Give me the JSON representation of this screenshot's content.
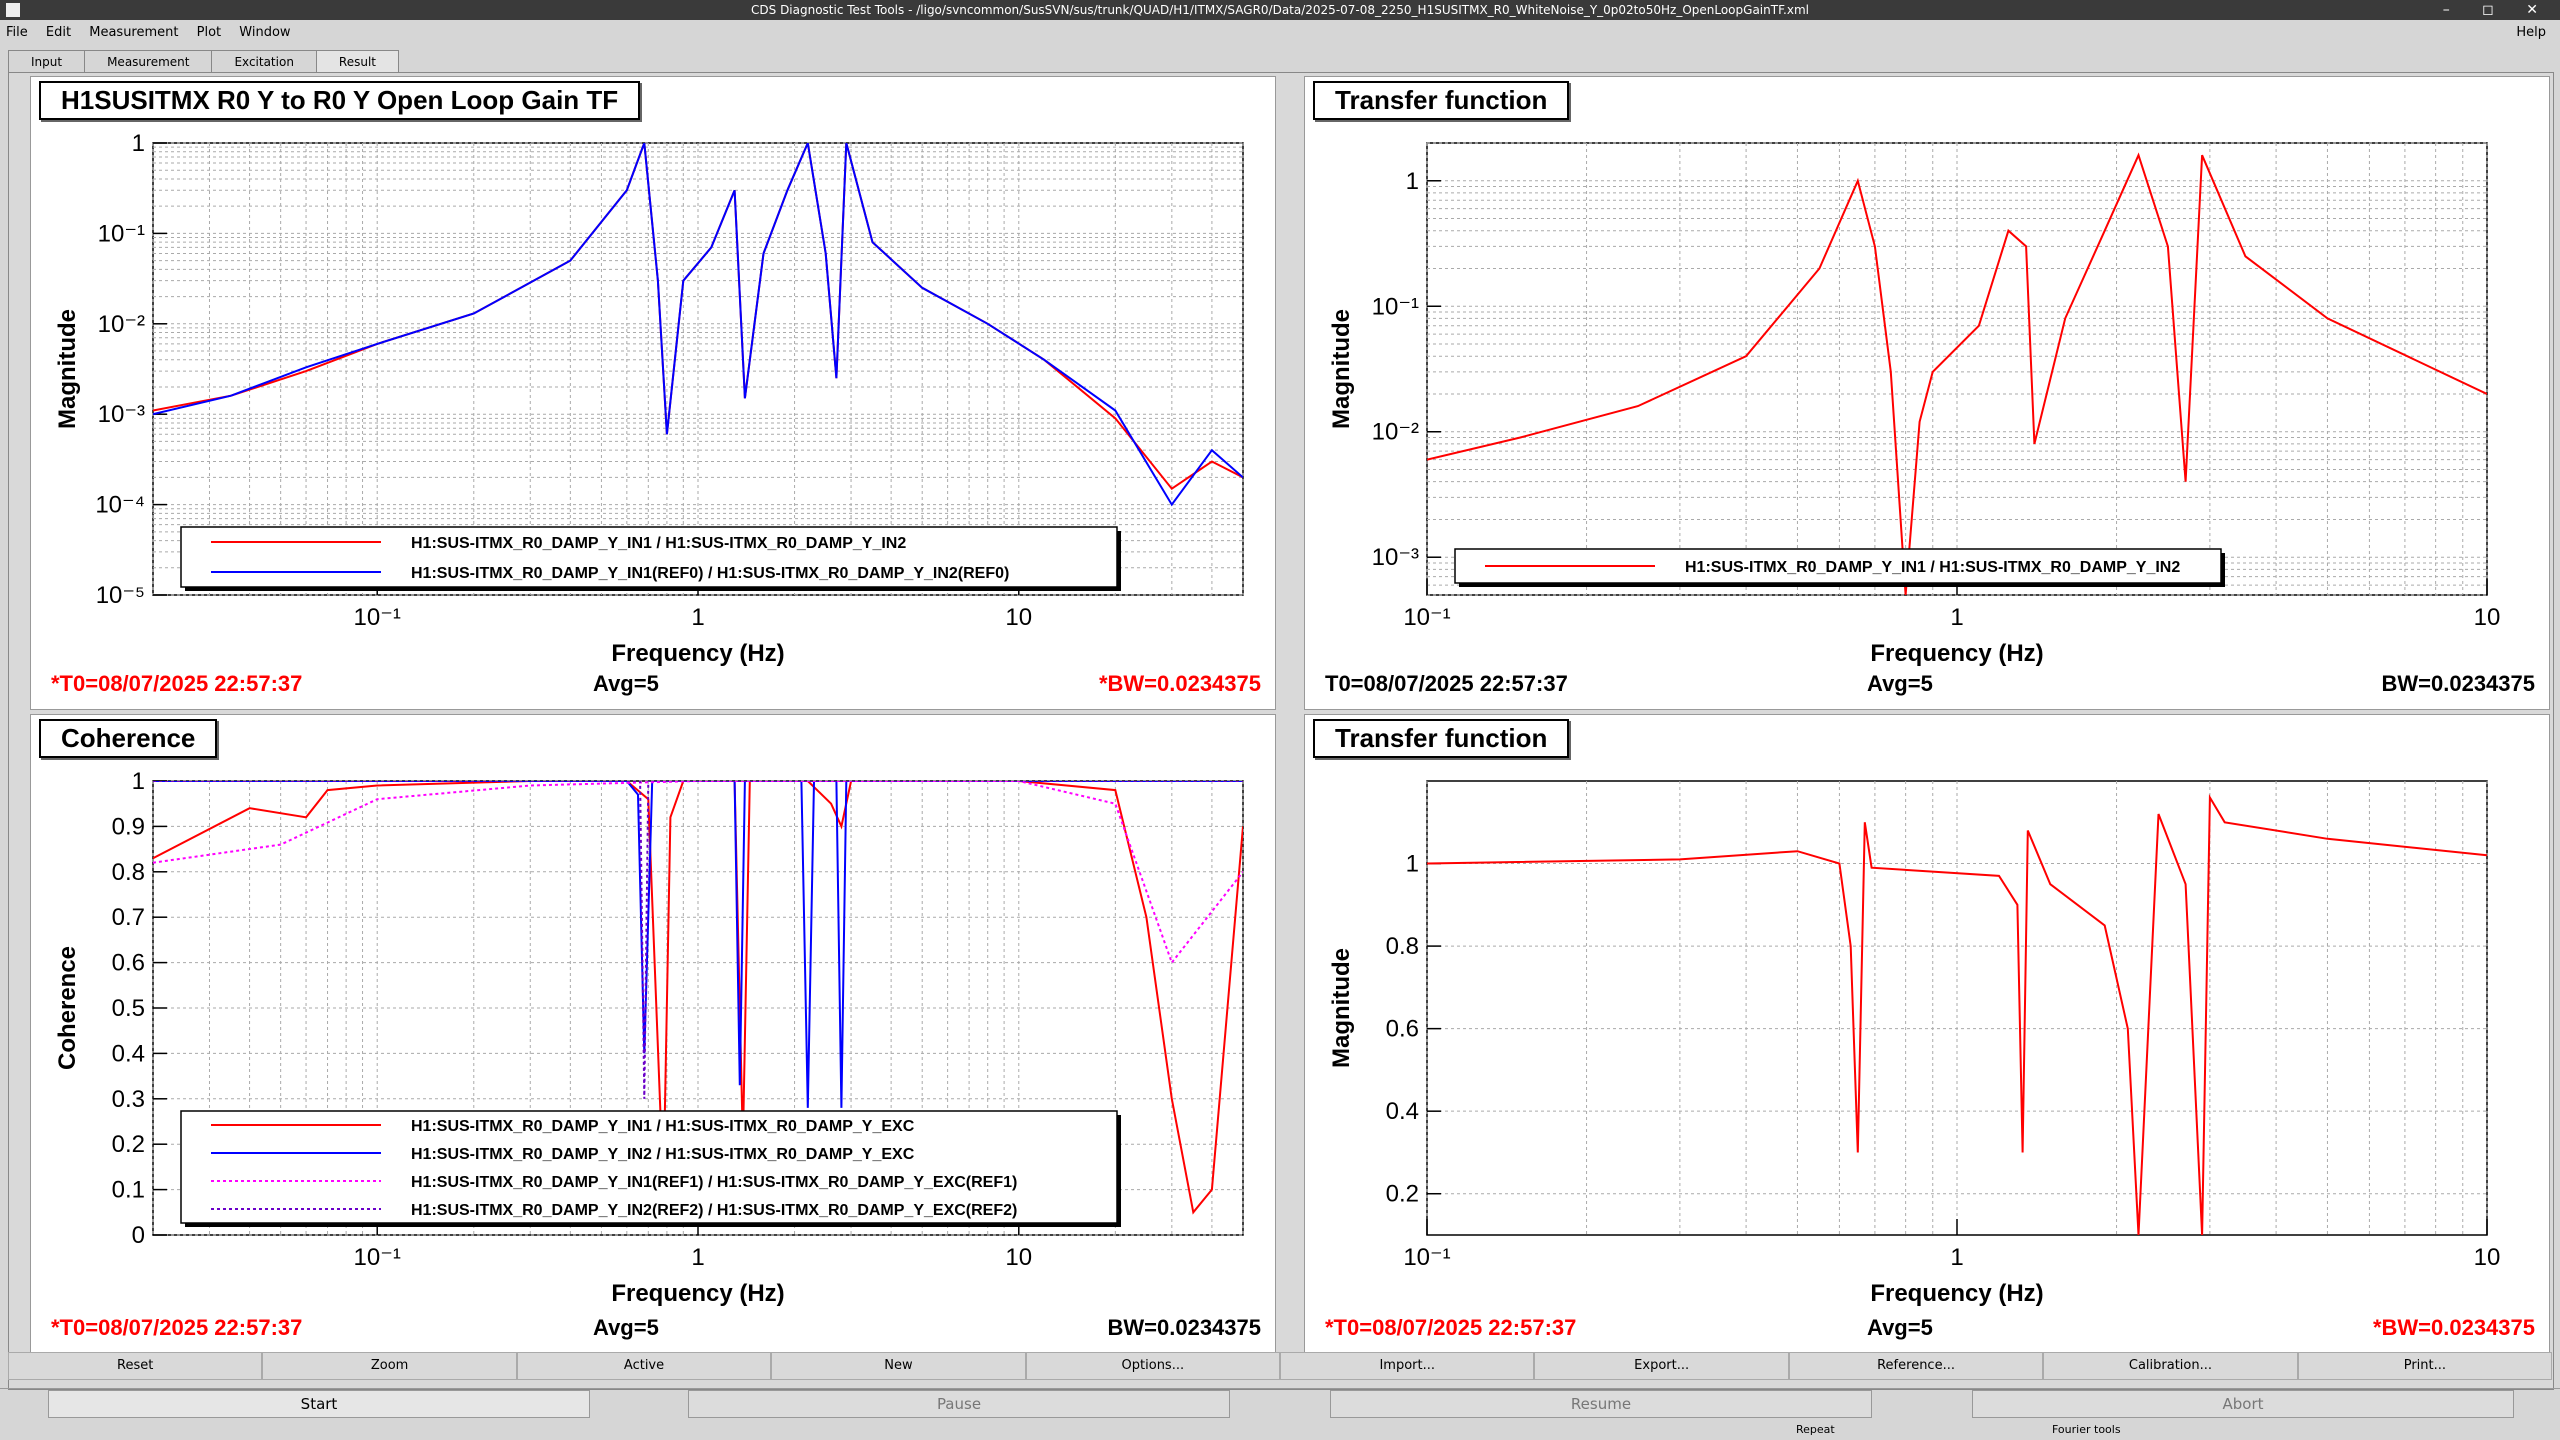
{
  "window": {
    "title": "CDS Diagnostic Test Tools - /ligo/svncommon/SusSVN/sus/trunk/QUAD/H1/ITMX/SAGR0/Data/2025-07-08_2250_H1SUSITMX_R0_WhiteNoise_Y_0p02to50Hz_OpenLoopGainTF.xml"
  },
  "menu": {
    "file": "File",
    "edit": "Edit",
    "measurement": "Measurement",
    "plot": "Plot",
    "window": "Window",
    "help": "Help"
  },
  "tabs": [
    "Input",
    "Measurement",
    "Excitation",
    "Result"
  ],
  "pads": {
    "tl": {
      "title": "H1SUSITMX R0 Y to R0 Y Open Loop Gain TF",
      "ylabel": "Magnitude",
      "xlabel": "Frequency (Hz)",
      "t0": "*T0=08/07/2025 22:57:37",
      "avg": "Avg=5",
      "bw": "*BW=0.0234375",
      "yticks": [
        "1",
        "10⁻¹",
        "10⁻²",
        "10⁻³",
        "10⁻⁴",
        "10⁻⁵"
      ],
      "xticks": [
        "10⁻¹",
        "1",
        "10"
      ],
      "legend": [
        "H1:SUS-ITMX_R0_DAMP_Y_IN1 / H1:SUS-ITMX_R0_DAMP_Y_IN2",
        "H1:SUS-ITMX_R0_DAMP_Y_IN1(REF0) / H1:SUS-ITMX_R0_DAMP_Y_IN2(REF0)"
      ]
    },
    "tr": {
      "title": "Transfer function",
      "ylabel": "Magnitude",
      "xlabel": "Frequency (Hz)",
      "t0": "T0=08/07/2025 22:57:37",
      "avg": "Avg=5",
      "bw": "BW=0.0234375",
      "yticks": [
        "1",
        "10⁻¹",
        "10⁻²",
        "10⁻³"
      ],
      "xticks": [
        "10⁻¹",
        "1",
        "10"
      ],
      "legend": [
        "H1:SUS-ITMX_R0_DAMP_Y_IN1 / H1:SUS-ITMX_R0_DAMP_Y_IN2"
      ]
    },
    "bl": {
      "title": "Coherence",
      "ylabel": "Coherence",
      "xlabel": "Frequency (Hz)",
      "t0": "*T0=08/07/2025 22:57:37",
      "avg": "Avg=5",
      "bw": "BW=0.0234375",
      "yticks": [
        "1",
        "0.9",
        "0.8",
        "0.7",
        "0.6",
        "0.5",
        "0.4",
        "0.3",
        "0.2",
        "0.1",
        "0"
      ],
      "xticks": [
        "10⁻¹",
        "1",
        "10"
      ],
      "legend": [
        "H1:SUS-ITMX_R0_DAMP_Y_IN1 / H1:SUS-ITMX_R0_DAMP_Y_EXC",
        "H1:SUS-ITMX_R0_DAMP_Y_IN2 / H1:SUS-ITMX_R0_DAMP_Y_EXC",
        "H1:SUS-ITMX_R0_DAMP_Y_IN1(REF1) / H1:SUS-ITMX_R0_DAMP_Y_EXC(REF1)",
        "H1:SUS-ITMX_R0_DAMP_Y_IN2(REF2) / H1:SUS-ITMX_R0_DAMP_Y_EXC(REF2)"
      ]
    },
    "br": {
      "title": "Transfer function",
      "ylabel": "Magnitude",
      "xlabel": "Frequency (Hz)",
      "t0": "*T0=08/07/2025 22:57:37",
      "avg": "Avg=5",
      "bw": "*BW=0.0234375",
      "yticks": [
        "1",
        "0.8",
        "0.6",
        "0.4",
        "0.2"
      ],
      "xticks": [
        "10⁻¹",
        "1",
        "10"
      ]
    }
  },
  "buttons_row1": [
    "Reset",
    "Zoom",
    "Active",
    "New",
    "Options...",
    "Import...",
    "Export...",
    "Reference...",
    "Calibration...",
    "Print..."
  ],
  "buttons_row2": [
    "Start",
    "Pause",
    "Resume",
    "Abort"
  ],
  "status": {
    "repeat": "Repeat",
    "fourier": "Fourier tools"
  },
  "colors": {
    "red": "#ff0000",
    "blue": "#0000ff",
    "magenta": "#ff00ff",
    "purple": "#6a00c8"
  },
  "chart_data": [
    {
      "type": "line",
      "title": "H1SUSITMX R0 Y to R0 Y Open Loop Gain TF",
      "xlabel": "Frequency (Hz)",
      "ylabel": "Magnitude",
      "xscale": "log",
      "yscale": "log",
      "xlim": [
        0.02,
        50
      ],
      "ylim": [
        1e-05,
        1
      ],
      "grid": true,
      "legend": "bottom",
      "series": [
        {
          "name": "H1:SUS-ITMX_R0_DAMP_Y_IN1 / H1:SUS-ITMX_R0_DAMP_Y_IN2",
          "color": "red",
          "x": [
            0.02,
            0.035,
            0.06,
            0.1,
            0.2,
            0.4,
            0.6,
            0.68,
            0.75,
            0.8,
            0.9,
            1.1,
            1.3,
            1.4,
            1.6,
            1.9,
            2.2,
            2.5,
            2.7,
            2.9,
            3.5,
            5,
            8,
            12,
            20,
            30,
            40,
            50
          ],
          "y": [
            0.0011,
            0.0016,
            0.003,
            0.006,
            0.013,
            0.05,
            0.3,
            1,
            0.03,
            0.0006,
            0.03,
            0.07,
            0.3,
            0.0015,
            0.06,
            0.3,
            1,
            0.06,
            0.0025,
            1,
            0.08,
            0.025,
            0.01,
            0.004,
            0.0009,
            0.00015,
            0.0003,
            0.0002
          ]
        },
        {
          "name": "H1:SUS-ITMX_R0_DAMP_Y_IN1(REF0) / H1:SUS-ITMX_R0_DAMP_Y_IN2(REF0)",
          "color": "blue",
          "x": [
            0.02,
            0.035,
            0.06,
            0.1,
            0.2,
            0.4,
            0.6,
            0.68,
            0.75,
            0.8,
            0.9,
            1.1,
            1.3,
            1.4,
            1.6,
            1.9,
            2.2,
            2.5,
            2.7,
            2.9,
            3.5,
            5,
            8,
            12,
            20,
            30,
            40,
            50
          ],
          "y": [
            0.001,
            0.0016,
            0.0033,
            0.006,
            0.013,
            0.05,
            0.3,
            1,
            0.03,
            0.0006,
            0.03,
            0.07,
            0.3,
            0.0015,
            0.06,
            0.3,
            1,
            0.06,
            0.0025,
            1,
            0.08,
            0.025,
            0.01,
            0.004,
            0.0011,
            0.0001,
            0.0004,
            0.0002
          ]
        }
      ]
    },
    {
      "type": "line",
      "title": "Transfer function",
      "xlabel": "Frequency (Hz)",
      "ylabel": "Magnitude",
      "xscale": "log",
      "yscale": "log",
      "xlim": [
        0.1,
        10
      ],
      "ylim": [
        0.0005,
        2
      ],
      "grid": true,
      "legend": "bottom",
      "series": [
        {
          "name": "H1:SUS-ITMX_R0_DAMP_Y_IN1 / H1:SUS-ITMX_R0_DAMP_Y_IN2",
          "color": "red",
          "x": [
            0.1,
            0.15,
            0.25,
            0.4,
            0.55,
            0.65,
            0.7,
            0.75,
            0.8,
            0.85,
            0.9,
            1.1,
            1.25,
            1.35,
            1.4,
            1.6,
            1.9,
            2.2,
            2.5,
            2.7,
            2.9,
            3.5,
            5,
            10
          ],
          "y": [
            0.006,
            0.009,
            0.016,
            0.04,
            0.2,
            1,
            0.3,
            0.03,
            0.0005,
            0.012,
            0.03,
            0.07,
            0.4,
            0.3,
            0.008,
            0.08,
            0.4,
            1.6,
            0.3,
            0.004,
            1.6,
            0.25,
            0.08,
            0.02
          ]
        }
      ]
    },
    {
      "type": "line",
      "title": "Coherence",
      "xlabel": "Frequency (Hz)",
      "ylabel": "Coherence",
      "xscale": "log",
      "xlim": [
        0.02,
        50
      ],
      "ylim": [
        0,
        1
      ],
      "grid": true,
      "legend": "bottom",
      "series": [
        {
          "name": "H1:SUS-ITMX_R0_DAMP_Y_IN1 / H1:SUS-ITMX_R0_DAMP_Y_EXC",
          "color": "red",
          "x": [
            0.02,
            0.04,
            0.06,
            0.07,
            0.1,
            0.3,
            0.6,
            0.7,
            0.78,
            0.82,
            0.9,
            1.3,
            1.38,
            1.45,
            2.2,
            2.6,
            2.8,
            3,
            5,
            10,
            20,
            25,
            30,
            35,
            40,
            50
          ],
          "y": [
            0.83,
            0.94,
            0.92,
            0.98,
            0.99,
            1,
            1,
            0.96,
            0.1,
            0.92,
            1,
            1,
            0.2,
            1,
            1,
            0.95,
            0.9,
            1,
            1,
            1,
            0.98,
            0.7,
            0.3,
            0.05,
            0.1,
            0.9
          ]
        },
        {
          "name": "H1:SUS-ITMX_R0_DAMP_Y_IN2 / H1:SUS-ITMX_R0_DAMP_Y_EXC",
          "color": "blue",
          "x": [
            0.02,
            0.6,
            0.65,
            0.68,
            0.72,
            1.3,
            1.35,
            1.4,
            2.1,
            2.2,
            2.3,
            2.7,
            2.8,
            2.9,
            50
          ],
          "y": [
            1,
            1,
            0.97,
            0.4,
            1,
            1,
            0.33,
            1,
            1,
            0.28,
            1,
            1,
            0.28,
            1,
            1
          ]
        },
        {
          "name": "H1:SUS-ITMX_R0_DAMP_Y_IN1(REF1) / H1:SUS-ITMX_R0_DAMP_Y_EXC(REF1)",
          "color": "magenta",
          "x": [
            0.02,
            0.05,
            0.1,
            0.3,
            1,
            10,
            20,
            30,
            50
          ],
          "y": [
            0.82,
            0.86,
            0.96,
            0.99,
            1,
            1,
            0.95,
            0.6,
            0.8
          ]
        },
        {
          "name": "H1:SUS-ITMX_R0_DAMP_Y_IN2(REF2) / H1:SUS-ITMX_R0_DAMP_Y_EXC(REF2)",
          "color": "purple",
          "x": [
            0.02,
            0.66,
            0.68,
            0.7,
            50
          ],
          "y": [
            1,
            1,
            0.3,
            1,
            1
          ]
        }
      ]
    },
    {
      "type": "line",
      "title": "Transfer function",
      "xlabel": "Frequency (Hz)",
      "ylabel": "Magnitude",
      "xscale": "log",
      "xlim": [
        0.1,
        10
      ],
      "ylim": [
        0.1,
        1.2
      ],
      "grid": true,
      "series": [
        {
          "name": "",
          "color": "red",
          "x": [
            0.1,
            0.3,
            0.5,
            0.6,
            0.63,
            0.65,
            0.67,
            0.69,
            1.2,
            1.3,
            1.33,
            1.36,
            1.5,
            1.9,
            2.1,
            2.2,
            2.4,
            2.7,
            2.9,
            3.0,
            3.2,
            5,
            10
          ],
          "y": [
            1,
            1.01,
            1.03,
            1.0,
            0.8,
            0.3,
            1.1,
            0.99,
            0.97,
            0.9,
            0.3,
            1.08,
            0.95,
            0.85,
            0.6,
            0.1,
            1.12,
            0.95,
            0.1,
            1.16,
            1.1,
            1.06,
            1.02
          ]
        }
      ]
    }
  ]
}
